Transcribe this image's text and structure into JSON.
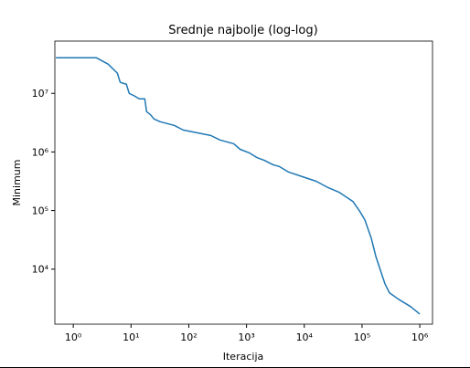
{
  "chart_data": {
    "type": "line",
    "title": "Srednje najbolje (log-log)",
    "xlabel": "Iteracija",
    "ylabel": "Minimum",
    "xscale": "log",
    "yscale": "log",
    "xlim": [
      0.48,
      1660000
    ],
    "ylim": [
      1150,
      78000000
    ],
    "xticks": [
      {
        "value": 1,
        "label": "10⁰"
      },
      {
        "value": 10,
        "label": "10¹"
      },
      {
        "value": 100,
        "label": "10²"
      },
      {
        "value": 1000,
        "label": "10³"
      },
      {
        "value": 10000,
        "label": "10⁴"
      },
      {
        "value": 100000,
        "label": "10⁵"
      },
      {
        "value": 1000000,
        "label": "10⁶"
      }
    ],
    "yticks": [
      {
        "value": 10000,
        "label": "10⁴"
      },
      {
        "value": 100000,
        "label": "10⁵"
      },
      {
        "value": 1000000,
        "label": "10⁶"
      },
      {
        "value": 10000000,
        "label": "10⁷"
      }
    ],
    "series": [
      {
        "color": "#1f77b4",
        "x": [
          0.5,
          2.5,
          4,
          5.8,
          6.5,
          8.3,
          9.3,
          11.6,
          13.9,
          17.3,
          18.6,
          21.5,
          25,
          32,
          56,
          80,
          139,
          240,
          347,
          600,
          774,
          1116,
          1496,
          2004,
          2887,
          3725,
          5370,
          9290,
          16070,
          25870,
          40090,
          69340,
          89540,
          111600,
          144200,
          173000,
          207600,
          249300,
          299200,
          431700,
          693900,
          1000000
        ],
        "values": [
          40600000,
          40600000,
          31600000,
          22100000,
          15400000,
          14300000,
          10000000,
          8980000,
          8060000,
          8060000,
          4870000,
          4370000,
          3650000,
          3280000,
          2840000,
          2370000,
          2130000,
          1910000,
          1600000,
          1380000,
          1110000,
          965000,
          806000,
          723000,
          604000,
          562000,
          453000,
          378000,
          316000,
          246000,
          205000,
          143000,
          100000,
          69800,
          33900,
          16600,
          9650,
          5620,
          3930,
          3050,
          2290,
          1710
        ]
      }
    ]
  }
}
